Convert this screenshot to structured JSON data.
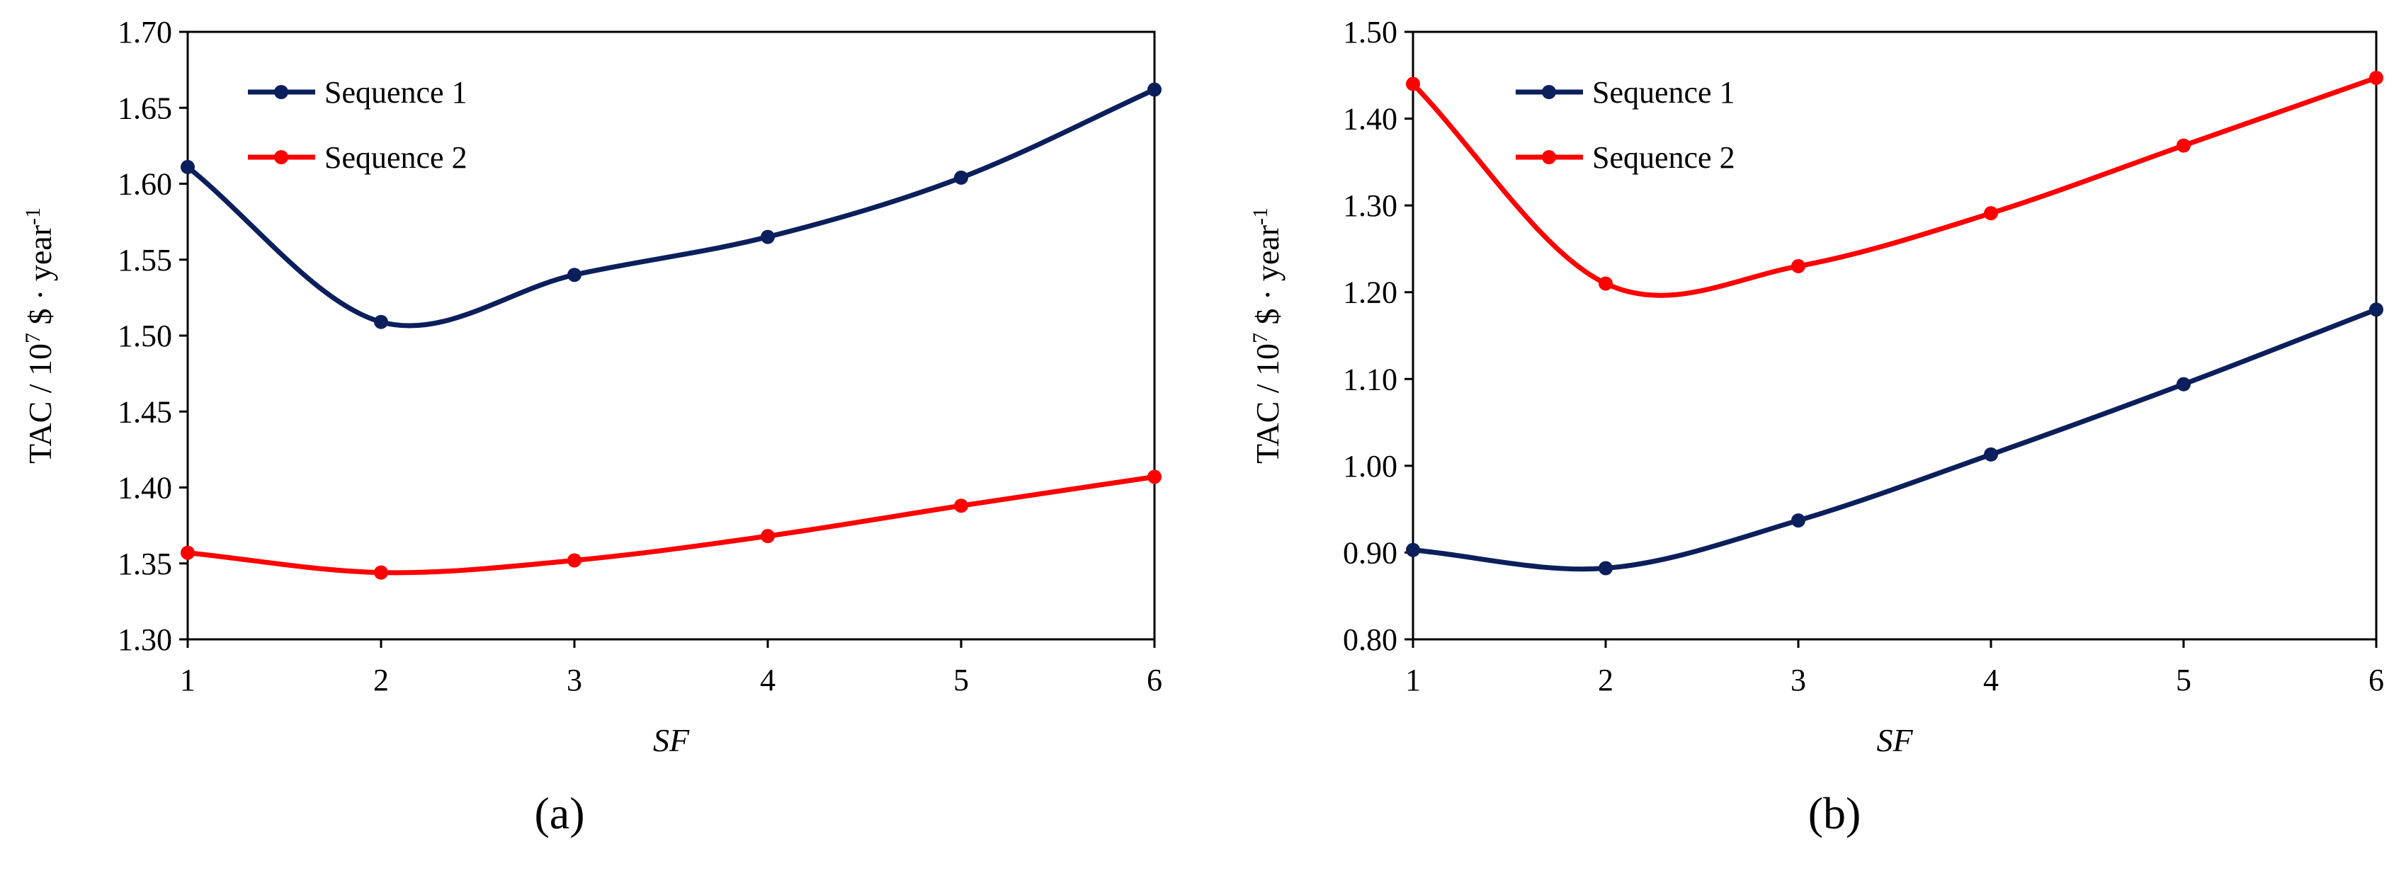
{
  "chart_data": [
    {
      "type": "line",
      "panel_label": "(a)",
      "x": [
        1,
        2,
        3,
        4,
        5,
        6
      ],
      "xlabel": "SF",
      "ylabel": {
        "prefix": "TAC / 10",
        "exp1": "7",
        "mid": " $ · year",
        "exp2": "-1"
      },
      "ylim": [
        1.3,
        1.7
      ],
      "yticks": [
        "1.30",
        "1.35",
        "1.40",
        "1.45",
        "1.50",
        "1.55",
        "1.60",
        "1.65",
        "1.70"
      ],
      "xticks": [
        "1",
        "2",
        "3",
        "4",
        "5",
        "6"
      ],
      "legend_position": "top-left",
      "series": [
        {
          "name": "Sequence 1",
          "color": "#0b1f5c",
          "values": [
            1.611,
            1.509,
            1.54,
            1.565,
            1.604,
            1.662
          ]
        },
        {
          "name": "Sequence 2",
          "color": "#ff0000",
          "values": [
            1.357,
            1.344,
            1.352,
            1.368,
            1.388,
            1.407
          ]
        }
      ]
    },
    {
      "type": "line",
      "panel_label": "(b)",
      "x": [
        1,
        2,
        3,
        4,
        5,
        6
      ],
      "xlabel": "SF",
      "ylabel": {
        "prefix": "TAC / 10",
        "exp1": "7",
        "mid": " $ · year",
        "exp2": "-1"
      },
      "ylim": [
        0.8,
        1.5
      ],
      "yticks": [
        "0.80",
        "0.90",
        "1.00",
        "1.10",
        "1.20",
        "1.30",
        "1.40",
        "1.50"
      ],
      "xticks": [
        "1",
        "2",
        "3",
        "4",
        "5",
        "6"
      ],
      "legend_position": "top-left",
      "series": [
        {
          "name": "Sequence 1",
          "color": "#0b1f5c",
          "values": [
            0.903,
            0.882,
            0.937,
            1.013,
            1.094,
            1.18
          ]
        },
        {
          "name": "Sequence 2",
          "color": "#ff0000",
          "values": [
            1.44,
            1.21,
            1.23,
            1.291,
            1.369,
            1.447
          ]
        }
      ]
    }
  ]
}
